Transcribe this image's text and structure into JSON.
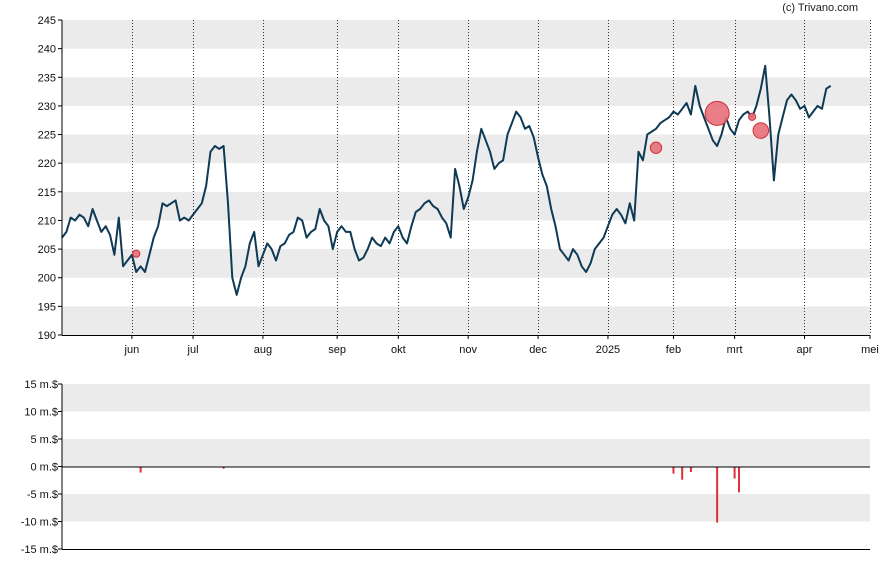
{
  "credit": "(c) Trivano.com",
  "colors": {
    "price_line": "#0f3a55",
    "band": "#ebebeb",
    "volume_bar": "#e0303a",
    "marker_fill": "#e8707a",
    "marker_stroke": "#d0303a",
    "axis": "#000000"
  },
  "chart_data": [
    {
      "type": "line",
      "title": "",
      "xlabel": "",
      "ylabel": "",
      "ylim": [
        190,
        245
      ],
      "y_ticks": [
        "190",
        "195",
        "200",
        "205",
        "210",
        "215",
        "220",
        "225",
        "230",
        "235",
        "240",
        "245"
      ],
      "x_ticks": [
        {
          "label": "jun",
          "t": 16
        },
        {
          "label": "jul",
          "t": 30
        },
        {
          "label": "aug",
          "t": 46
        },
        {
          "label": "sep",
          "t": 63
        },
        {
          "label": "okt",
          "t": 77
        },
        {
          "label": "nov",
          "t": 93
        },
        {
          "label": "dec",
          "t": 109
        },
        {
          "label": "2025",
          "t": 125
        },
        {
          "label": "feb",
          "t": 140
        },
        {
          "label": "mrt",
          "t": 154
        },
        {
          "label": "apr",
          "t": 170
        },
        {
          "label": "mei",
          "t": 185
        }
      ],
      "x_range": [
        0,
        185
      ],
      "grid": {
        "vertical_dotted": true,
        "horizontal_bands": true
      },
      "series": [
        {
          "values": [
            [
              0,
              207
            ],
            [
              1,
              208
            ],
            [
              2,
              210.5
            ],
            [
              3,
              210
            ],
            [
              4,
              211
            ],
            [
              5,
              210.5
            ],
            [
              6,
              209
            ],
            [
              7,
              212
            ],
            [
              8,
              210
            ],
            [
              9,
              208
            ],
            [
              10,
              209
            ],
            [
              11,
              207.5
            ],
            [
              12,
              204
            ],
            [
              13,
              210.5
            ],
            [
              14,
              202
            ],
            [
              15,
              203
            ],
            [
              16,
              204
            ],
            [
              17,
              201
            ],
            [
              18,
              202
            ],
            [
              19,
              201
            ],
            [
              20,
              204
            ],
            [
              21,
              207
            ],
            [
              22,
              209
            ],
            [
              23,
              213
            ],
            [
              24,
              212.5
            ],
            [
              25,
              213
            ],
            [
              26,
              213.5
            ],
            [
              27,
              210
            ],
            [
              28,
              210.5
            ],
            [
              29,
              210
            ],
            [
              30,
              211
            ],
            [
              31,
              212
            ],
            [
              32,
              213
            ],
            [
              33,
              216
            ],
            [
              34,
              222
            ],
            [
              35,
              223
            ],
            [
              36,
              222.5
            ],
            [
              37,
              223
            ],
            [
              38,
              213
            ],
            [
              39,
              200
            ],
            [
              40,
              197
            ],
            [
              41,
              200
            ],
            [
              42,
              202
            ],
            [
              43,
              206
            ],
            [
              44,
              208
            ],
            [
              45,
              202
            ],
            [
              46,
              204
            ],
            [
              47,
              206
            ],
            [
              48,
              205
            ],
            [
              49,
              203
            ],
            [
              50,
              205.5
            ],
            [
              51,
              206
            ],
            [
              52,
              207.5
            ],
            [
              53,
              208
            ],
            [
              54,
              210.5
            ],
            [
              55,
              210
            ],
            [
              56,
              207
            ],
            [
              57,
              208
            ],
            [
              58,
              208.5
            ],
            [
              59,
              212
            ],
            [
              60,
              210
            ],
            [
              61,
              209
            ],
            [
              62,
              205
            ],
            [
              63,
              208
            ],
            [
              64,
              209
            ],
            [
              65,
              208
            ],
            [
              66,
              208
            ],
            [
              67,
              205
            ],
            [
              68,
              203
            ],
            [
              69,
              203.5
            ],
            [
              70,
              205
            ],
            [
              71,
              207
            ],
            [
              72,
              206
            ],
            [
              73,
              205.5
            ],
            [
              74,
              207
            ],
            [
              75,
              206
            ],
            [
              76,
              208
            ],
            [
              77,
              209
            ],
            [
              78,
              207
            ],
            [
              79,
              206
            ],
            [
              80,
              209
            ],
            [
              81,
              211.5
            ],
            [
              82,
              212
            ],
            [
              83,
              213
            ],
            [
              84,
              213.5
            ],
            [
              85,
              212.5
            ],
            [
              86,
              212
            ],
            [
              87,
              210.5
            ],
            [
              88,
              209.5
            ],
            [
              89,
              207
            ],
            [
              90,
              219
            ],
            [
              91,
              216
            ],
            [
              92,
              212
            ],
            [
              93,
              214
            ],
            [
              94,
              217
            ],
            [
              95,
              222
            ],
            [
              96,
              226
            ],
            [
              97,
              224
            ],
            [
              98,
              222
            ],
            [
              99,
              219
            ],
            [
              100,
              220
            ],
            [
              101,
              220.5
            ],
            [
              102,
              225
            ],
            [
              103,
              227
            ],
            [
              104,
              229
            ],
            [
              105,
              228
            ],
            [
              106,
              226
            ],
            [
              107,
              226.5
            ],
            [
              108,
              224.5
            ],
            [
              109,
              221
            ],
            [
              110,
              218
            ],
            [
              111,
              216
            ],
            [
              112,
              212
            ],
            [
              113,
              209
            ],
            [
              114,
              205
            ],
            [
              115,
              204
            ],
            [
              116,
              203
            ],
            [
              117,
              205
            ],
            [
              118,
              204
            ],
            [
              119,
              202
            ],
            [
              120,
              201
            ],
            [
              121,
              202.5
            ],
            [
              122,
              205
            ],
            [
              123,
              206
            ],
            [
              124,
              207
            ],
            [
              125,
              209
            ],
            [
              126,
              211
            ],
            [
              127,
              212
            ],
            [
              128,
              211
            ],
            [
              129,
              209.5
            ],
            [
              130,
              213
            ],
            [
              131,
              210
            ],
            [
              132,
              222
            ],
            [
              133,
              220.5
            ],
            [
              134,
              225
            ],
            [
              135,
              225.5
            ],
            [
              136,
              226
            ],
            [
              137,
              227
            ],
            [
              138,
              227.5
            ],
            [
              139,
              228
            ],
            [
              140,
              229
            ],
            [
              141,
              228.5
            ],
            [
              142,
              229.5
            ],
            [
              143,
              230.5
            ],
            [
              144,
              228.5
            ],
            [
              145,
              233.5
            ],
            [
              146,
              230
            ],
            [
              147,
              228
            ],
            [
              148,
              226
            ],
            [
              149,
              224
            ],
            [
              150,
              223
            ],
            [
              151,
              225
            ],
            [
              152,
              228
            ],
            [
              153,
              226
            ],
            [
              154,
              225
            ],
            [
              155,
              227.5
            ],
            [
              156,
              228.5
            ],
            [
              157,
              229
            ],
            [
              158,
              228
            ],
            [
              159,
              230
            ],
            [
              160,
              233
            ],
            [
              161,
              237
            ],
            [
              162,
              228
            ],
            [
              163,
              217
            ],
            [
              164,
              225
            ],
            [
              165,
              228
            ],
            [
              166,
              231
            ],
            [
              167,
              232
            ],
            [
              168,
              231
            ],
            [
              169,
              229.5
            ],
            [
              170,
              230
            ],
            [
              171,
              228
            ],
            [
              172,
              229
            ],
            [
              173,
              230
            ],
            [
              174,
              229.5
            ],
            [
              175,
              233
            ],
            [
              176,
              233.5
            ]
          ]
        }
      ],
      "markers": [
        {
          "t": 17,
          "value": 204.2,
          "size": 1
        },
        {
          "t": 136,
          "value": 222.7,
          "size": 2
        },
        {
          "t": 150,
          "value": 228.7,
          "size": 5
        },
        {
          "t": 158,
          "value": 228.1,
          "size": 1
        },
        {
          "t": 160,
          "value": 225.7,
          "size": 3
        }
      ]
    },
    {
      "type": "bar",
      "title": "",
      "ylabel": "",
      "ylim": [
        -15,
        15
      ],
      "y_ticks": [
        "15 m.$",
        "10 m.$",
        "5 m.$",
        "0 m.$",
        "-5 m.$",
        "-10 m.$",
        "-15 m.$"
      ],
      "x_range": [
        0,
        185
      ],
      "bars": [
        {
          "t": 18,
          "value": -1.1
        },
        {
          "t": 37,
          "value": -0.4
        },
        {
          "t": 140,
          "value": -1.3
        },
        {
          "t": 142,
          "value": -2.4
        },
        {
          "t": 144,
          "value": -1.0
        },
        {
          "t": 150,
          "value": -10.2
        },
        {
          "t": 154,
          "value": -2.2
        },
        {
          "t": 155,
          "value": -4.7
        }
      ]
    }
  ]
}
